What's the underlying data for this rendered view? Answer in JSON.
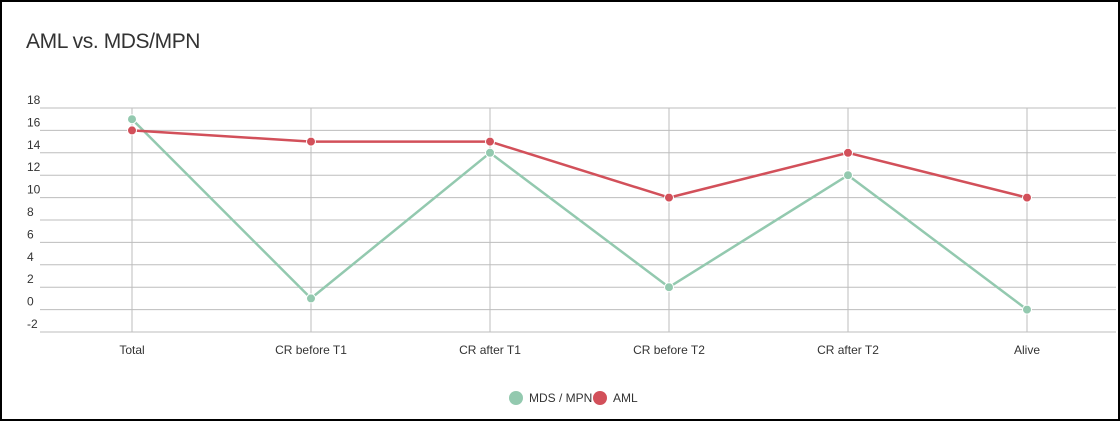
{
  "chart_data": {
    "type": "line",
    "title": "AML vs. MDS/MPN",
    "xlabel": "",
    "ylabel": "",
    "categories": [
      "Total",
      "CR before T1",
      "CR after T1",
      "CR before T2",
      "CR after T2",
      "Alive"
    ],
    "series": [
      {
        "name": "MDS / MPN",
        "color": "#93c9af",
        "values": [
          17,
          1,
          14,
          2,
          12,
          0
        ]
      },
      {
        "name": "AML",
        "color": "#d2505a",
        "values": [
          16,
          15,
          15,
          10,
          14,
          10
        ]
      }
    ],
    "ylim": [
      -2,
      18
    ],
    "yticks": [
      18,
      16,
      14,
      12,
      10,
      8,
      6,
      4,
      2,
      0,
      -2
    ],
    "grid": true,
    "legend_position": "bottom-center"
  }
}
